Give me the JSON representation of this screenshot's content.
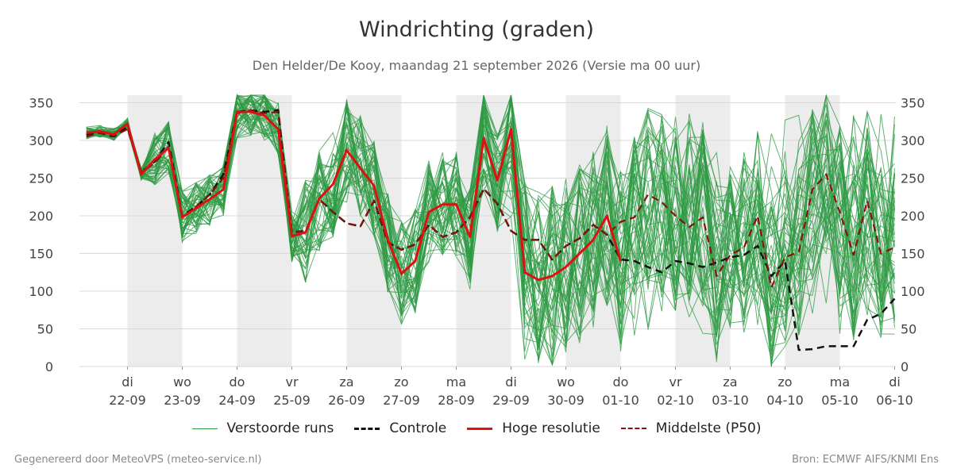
{
  "chart_data": {
    "type": "line",
    "title": "Windrichting (graden)",
    "subtitle": "Den Helder/De Kooy, maandag 21 september 2026 (Versie ma 00 uur)",
    "ylim": [
      0,
      360
    ],
    "yticks": [
      0,
      50,
      100,
      150,
      200,
      250,
      300,
      350
    ],
    "xlim": [
      -0.75,
      14.0
    ],
    "grid": true,
    "x_ticks": [
      {
        "x": 0,
        "day": "di",
        "date": "22-09"
      },
      {
        "x": 1,
        "day": "wo",
        "date": "23-09"
      },
      {
        "x": 2,
        "day": "do",
        "date": "24-09"
      },
      {
        "x": 3,
        "day": "vr",
        "date": "25-09"
      },
      {
        "x": 4,
        "day": "za",
        "date": "26-09"
      },
      {
        "x": 5,
        "day": "zo",
        "date": "27-09"
      },
      {
        "x": 6,
        "day": "ma",
        "date": "28-09"
      },
      {
        "x": 7,
        "day": "di",
        "date": "29-09"
      },
      {
        "x": 8,
        "day": "wo",
        "date": "30-09"
      },
      {
        "x": 9,
        "day": "do",
        "date": "01-10"
      },
      {
        "x": 10,
        "day": "vr",
        "date": "02-10"
      },
      {
        "x": 11,
        "day": "za",
        "date": "03-10"
      },
      {
        "x": 12,
        "day": "zo",
        "date": "04-10"
      },
      {
        "x": 13,
        "day": "ma",
        "date": "05-10"
      },
      {
        "x": 14,
        "day": "di",
        "date": "06-10"
      }
    ],
    "shaded_bands": [
      [
        0,
        1
      ],
      [
        2,
        3
      ],
      [
        4,
        5
      ],
      [
        6,
        7
      ],
      [
        8,
        9
      ],
      [
        10,
        11
      ],
      [
        12,
        13
      ]
    ],
    "series": [
      {
        "name": "Hoge resolutie",
        "color": "#dd1111",
        "style": "solid",
        "points": [
          [
            -0.75,
            310
          ],
          [
            -0.5,
            312
          ],
          [
            -0.25,
            308
          ],
          [
            0,
            322
          ],
          [
            0.25,
            255
          ],
          [
            0.5,
            275
          ],
          [
            0.75,
            290
          ],
          [
            1,
            198
          ],
          [
            1.25,
            210
          ],
          [
            1.5,
            222
          ],
          [
            1.75,
            235
          ],
          [
            2,
            338
          ],
          [
            2.25,
            338
          ],
          [
            2.5,
            333
          ],
          [
            2.75,
            315
          ],
          [
            3,
            173
          ],
          [
            3.25,
            178
          ],
          [
            3.5,
            223
          ],
          [
            3.75,
            242
          ],
          [
            4,
            287
          ],
          [
            4.25,
            263
          ],
          [
            4.5,
            240
          ],
          [
            4.75,
            168
          ],
          [
            5,
            123
          ],
          [
            5.25,
            140
          ],
          [
            5.5,
            205
          ],
          [
            5.75,
            215
          ],
          [
            6,
            215
          ],
          [
            6.25,
            172
          ],
          [
            6.5,
            303
          ],
          [
            6.75,
            247
          ],
          [
            7,
            315
          ],
          [
            7.25,
            125
          ],
          [
            7.5,
            115
          ],
          [
            7.75,
            120
          ],
          [
            8,
            132
          ],
          [
            8.25,
            150
          ],
          [
            8.5,
            168
          ],
          [
            8.75,
            200
          ],
          [
            9,
            140
          ]
        ]
      },
      {
        "name": "Controle",
        "color": "#111111",
        "style": "dashed",
        "points": [
          [
            -0.75,
            308
          ],
          [
            -0.5,
            310
          ],
          [
            -0.25,
            305
          ],
          [
            0,
            318
          ],
          [
            0.25,
            258
          ],
          [
            0.5,
            272
          ],
          [
            0.75,
            298
          ],
          [
            1,
            200
          ],
          [
            1.25,
            212
          ],
          [
            1.5,
            228
          ],
          [
            1.75,
            255
          ],
          [
            2,
            338
          ],
          [
            2.25,
            340
          ],
          [
            2.5,
            338
          ],
          [
            2.75,
            340
          ],
          [
            3,
            178
          ],
          [
            3.25,
            180
          ],
          [
            3.5,
            222
          ],
          [
            3.75,
            205
          ],
          [
            4,
            190
          ],
          [
            4.25,
            186
          ],
          [
            4.5,
            220
          ],
          [
            4.75,
            165
          ],
          [
            5,
            155
          ],
          [
            5.25,
            162
          ],
          [
            5.5,
            188
          ],
          [
            5.75,
            172
          ],
          [
            6,
            178
          ],
          [
            6.25,
            198
          ],
          [
            6.5,
            236
          ],
          [
            6.75,
            216
          ],
          [
            7,
            180
          ],
          [
            7.25,
            168
          ],
          [
            7.5,
            168
          ],
          [
            7.75,
            142
          ],
          [
            8,
            160
          ],
          [
            8.25,
            170
          ],
          [
            8.5,
            188
          ],
          [
            8.75,
            175
          ],
          [
            9,
            142
          ],
          [
            9.25,
            140
          ],
          [
            9.5,
            132
          ],
          [
            9.75,
            125
          ],
          [
            10,
            140
          ],
          [
            10.25,
            137
          ],
          [
            10.5,
            132
          ],
          [
            10.75,
            138
          ],
          [
            11,
            145
          ],
          [
            11.25,
            148
          ],
          [
            11.5,
            160
          ],
          [
            11.75,
            120
          ],
          [
            12,
            140
          ],
          [
            12.25,
            22
          ],
          [
            12.5,
            23
          ],
          [
            12.75,
            27
          ],
          [
            13,
            27
          ],
          [
            13.25,
            27
          ],
          [
            13.5,
            62
          ],
          [
            13.75,
            70
          ],
          [
            14,
            90
          ]
        ]
      },
      {
        "name": "Middelste (P50)",
        "color": "#8b1010",
        "style": "dashed",
        "points": [
          [
            -0.75,
            305
          ],
          [
            -0.5,
            310
          ],
          [
            -0.25,
            306
          ],
          [
            0,
            315
          ],
          [
            0.25,
            258
          ],
          [
            0.5,
            270
          ],
          [
            0.75,
            292
          ],
          [
            1,
            198
          ],
          [
            1.25,
            212
          ],
          [
            1.5,
            228
          ],
          [
            1.75,
            250
          ],
          [
            2,
            336
          ],
          [
            2.25,
            340
          ],
          [
            2.5,
            336
          ],
          [
            2.75,
            338
          ],
          [
            3,
            180
          ],
          [
            3.25,
            178
          ],
          [
            3.5,
            222
          ],
          [
            3.75,
            205
          ],
          [
            4,
            190
          ],
          [
            4.25,
            186
          ],
          [
            4.5,
            220
          ],
          [
            4.75,
            165
          ],
          [
            5,
            155
          ],
          [
            5.25,
            162
          ],
          [
            5.5,
            188
          ],
          [
            5.75,
            172
          ],
          [
            6,
            178
          ],
          [
            6.25,
            198
          ],
          [
            6.5,
            236
          ],
          [
            6.75,
            216
          ],
          [
            7,
            180
          ],
          [
            7.25,
            168
          ],
          [
            7.5,
            168
          ],
          [
            7.75,
            142
          ],
          [
            8,
            160
          ],
          [
            8.25,
            170
          ],
          [
            8.5,
            188
          ],
          [
            8.75,
            175
          ],
          [
            9,
            192
          ],
          [
            9.25,
            198
          ],
          [
            9.5,
            228
          ],
          [
            9.75,
            218
          ],
          [
            10,
            200
          ],
          [
            10.25,
            185
          ],
          [
            10.5,
            198
          ],
          [
            10.75,
            120
          ],
          [
            11,
            148
          ],
          [
            11.25,
            158
          ],
          [
            11.5,
            200
          ],
          [
            11.75,
            105
          ],
          [
            12,
            145
          ],
          [
            12.25,
            152
          ],
          [
            12.5,
            235
          ],
          [
            12.75,
            255
          ],
          [
            13,
            205
          ],
          [
            13.25,
            148
          ],
          [
            13.5,
            220
          ],
          [
            13.75,
            150
          ],
          [
            14,
            158
          ]
        ]
      }
    ],
    "ensemble": {
      "name": "Verstoorde runs",
      "color": "#2e9a43",
      "count": 50
    }
  },
  "legend": [
    {
      "label": "Verstoorde runs",
      "color": "#2e9a43",
      "style": "thin"
    },
    {
      "label": "Controle",
      "color": "#111111",
      "style": "dashed"
    },
    {
      "label": "Hoge resolutie",
      "color": "#dd1111",
      "style": "solid"
    },
    {
      "label": "Middelste (P50)",
      "color": "#8b1010",
      "style": "dashed"
    }
  ],
  "footer": {
    "left": "Gegenereerd door MeteoVPS (meteo-service.nl)",
    "right": "Bron: ECMWF AIFS/KNMI Ens"
  }
}
